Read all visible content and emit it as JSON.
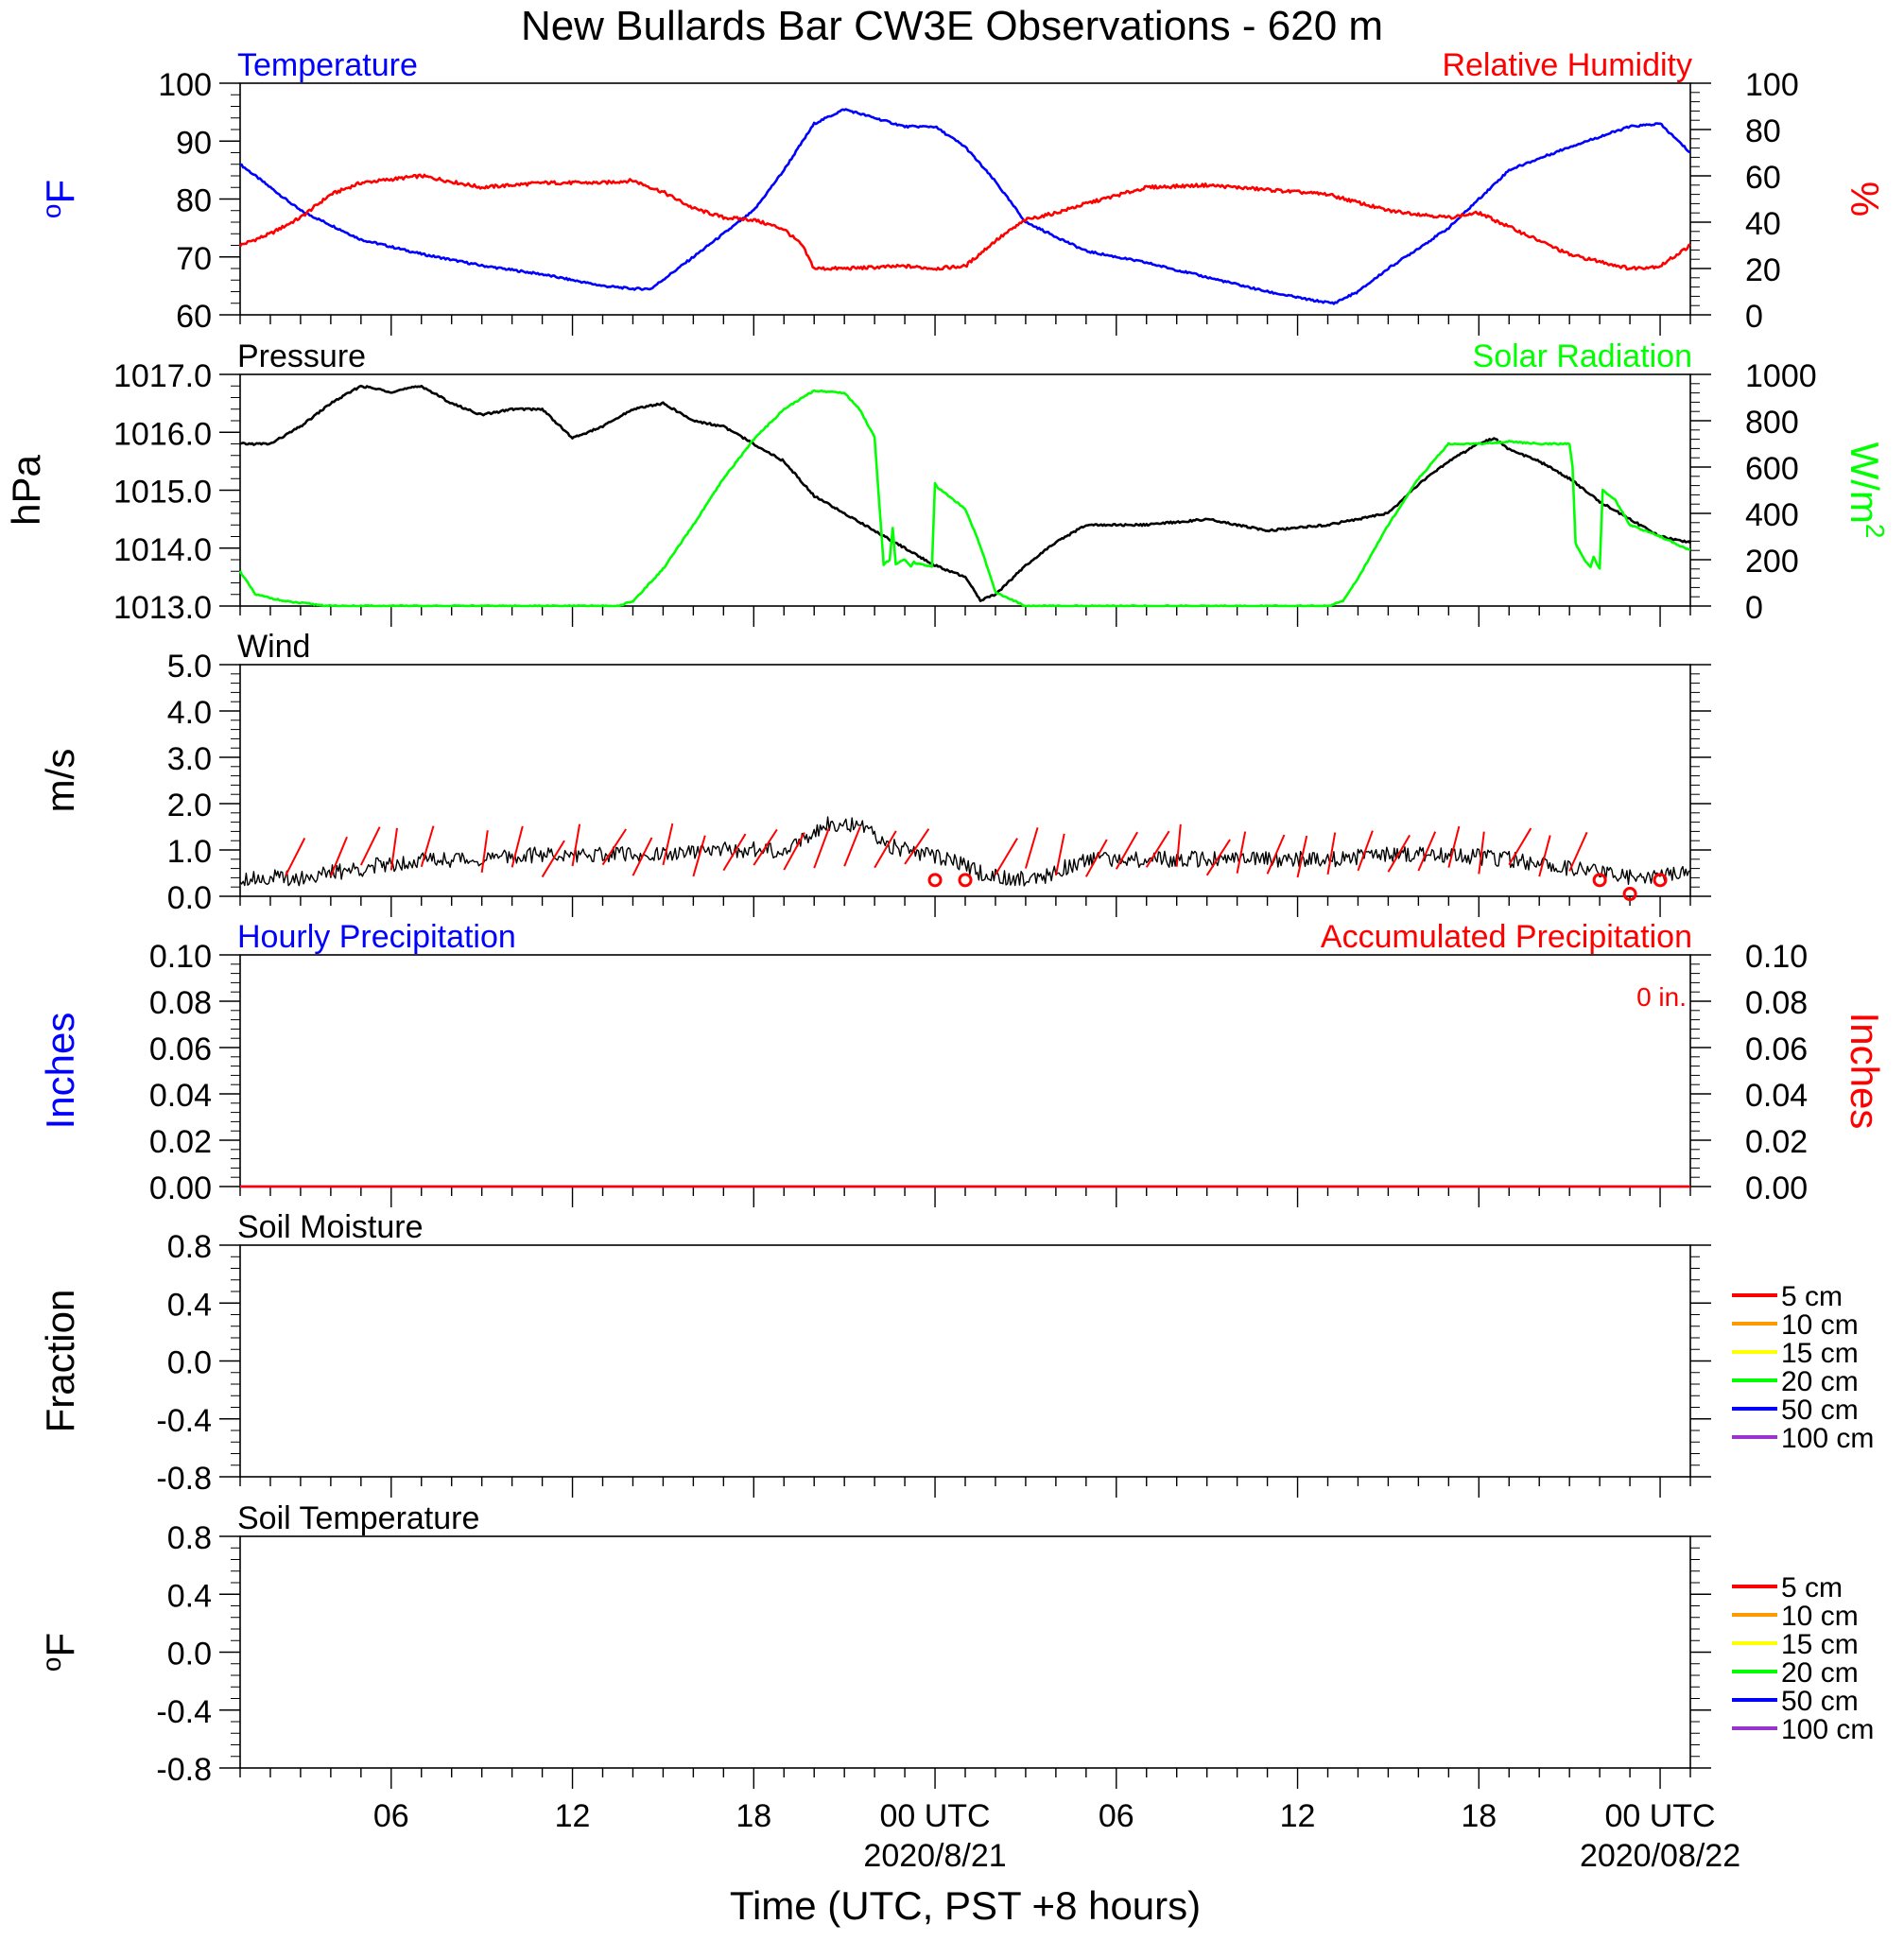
{
  "figure": {
    "title": "New Bullards Bar CW3E Observations - 620 m",
    "xlabel": "Time (UTC, PST +8 hours)",
    "x_tick_labels": [
      "06",
      "12",
      "18",
      "00 UTC",
      "06",
      "12",
      "18",
      "00 UTC"
    ],
    "date_labels": [
      "2020/8/21",
      "2020/08/22"
    ]
  },
  "colors": {
    "temperature": "#0000ff",
    "humidity": "#ff0000",
    "pressure": "#000000",
    "solar": "#00ff00",
    "wind": "#000000",
    "wind_barb": "#ff0000",
    "hourly_precip": "#0000ff",
    "accum_precip": "#ff0000"
  },
  "chart_data": [
    {
      "type": "line",
      "panel": "temperature-humidity",
      "x_unit": "hours since 2020-08-20 01:00 UTC",
      "xlim": [
        0,
        48
      ],
      "left_title": "Temperature",
      "right_title": "Relative Humidity",
      "ylabel_left": "oF",
      "ylabel_right": "%",
      "ylim_left": [
        60,
        100
      ],
      "ylim_right": [
        0,
        100
      ],
      "yticks_left": [
        "60",
        "70",
        "80",
        "90",
        "100"
      ],
      "yticks_right": [
        "0",
        "20",
        "40",
        "60",
        "80",
        "100"
      ],
      "series": [
        {
          "name": "Temperature",
          "axis": "left",
          "color": "#0000ff",
          "x": [
            0,
            2,
            4,
            6,
            8,
            10,
            12,
            13,
            13.6,
            15,
            17,
            18,
            19,
            20,
            21,
            22,
            23,
            24,
            25,
            26,
            28,
            30,
            32,
            34,
            35.5,
            36.2,
            37,
            38,
            40,
            42,
            44,
            46,
            47,
            48
          ],
          "y": [
            86,
            78,
            73,
            70.5,
            68.5,
            67,
            65,
            64.5,
            64.5,
            70,
            78,
            85,
            93,
            95.5,
            94,
            92.5,
            92.5,
            89,
            83,
            76,
            71,
            69,
            66.5,
            64,
            62.5,
            62,
            64,
            68,
            75,
            85,
            89,
            92.5,
            93,
            88
          ]
        },
        {
          "name": "Relative Humidity",
          "axis": "right",
          "color": "#ff0000",
          "x": [
            0,
            1,
            2,
            3,
            4,
            6,
            8,
            10,
            12,
            13,
            14,
            15,
            16,
            17,
            18,
            18.6,
            19,
            20,
            22,
            23,
            24,
            25,
            26,
            27,
            28,
            30,
            32,
            34,
            36,
            38,
            40,
            41,
            42,
            43,
            44,
            46,
            47,
            48
          ],
          "y": [
            30,
            35,
            42,
            52,
            57,
            60,
            55,
            57,
            57,
            58,
            53,
            46,
            42,
            41,
            37,
            30,
            20,
            20,
            21,
            20,
            21,
            32,
            41,
            44,
            48,
            55,
            56,
            54,
            52,
            45,
            42,
            44,
            38,
            32,
            26,
            20,
            21,
            30
          ]
        }
      ]
    },
    {
      "type": "line",
      "panel": "pressure-solar",
      "xlim": [
        0,
        48
      ],
      "left_title": "Pressure",
      "right_title": "Solar Radiation",
      "ylabel_left": "hPa",
      "ylabel_right": "W/m2",
      "ylim_left": [
        1013.0,
        1017.0
      ],
      "ylim_right": [
        0,
        1000
      ],
      "yticks_left": [
        "1013.0",
        "1014.0",
        "1015.0",
        "1016.0",
        "1017.0"
      ],
      "yticks_right": [
        "0",
        "200",
        "400",
        "600",
        "800",
        "1000"
      ],
      "series": [
        {
          "name": "Pressure",
          "axis": "left",
          "color": "#000000",
          "x": [
            0,
            1,
            2,
            3,
            4,
            5,
            6,
            7,
            8,
            9,
            10,
            11,
            11.5,
            12,
            13,
            14,
            15,
            16,
            17,
            18,
            19,
            20,
            21,
            22,
            23,
            24,
            24.5,
            25,
            26,
            27,
            28,
            30,
            32,
            34,
            36,
            38,
            39,
            40,
            41,
            41.5,
            42,
            43,
            44,
            45,
            46,
            47,
            48
          ],
          "y": [
            1015.8,
            1015.8,
            1016.1,
            1016.5,
            1016.8,
            1016.7,
            1016.8,
            1016.5,
            1016.3,
            1016.4,
            1016.4,
            1015.9,
            1016.0,
            1016.1,
            1016.4,
            1016.5,
            1016.2,
            1016.1,
            1015.8,
            1015.5,
            1014.9,
            1014.6,
            1014.3,
            1014.0,
            1013.7,
            1013.5,
            1013.1,
            1013.2,
            1013.7,
            1014.1,
            1014.4,
            1014.4,
            1014.5,
            1014.3,
            1014.4,
            1014.6,
            1015.1,
            1015.5,
            1015.8,
            1015.9,
            1015.7,
            1015.5,
            1015.2,
            1014.8,
            1014.5,
            1014.2,
            1014.1
          ]
        },
        {
          "name": "Solar Radiation",
          "axis": "right",
          "color": "#00ff00",
          "x": [
            0,
            0.5,
            1.5,
            3,
            12.5,
            13,
            14,
            15,
            16,
            17,
            18,
            19,
            20,
            20.5,
            21,
            21.3,
            21.5,
            21.6,
            21.7,
            22,
            22.2,
            22.3,
            22.4,
            22.6,
            22.9,
            23.0,
            23.1,
            24,
            24.5,
            25,
            25.5,
            26,
            36,
            36.5,
            37,
            38,
            39,
            40,
            41,
            42,
            43,
            44,
            44.1,
            44.2,
            44.5,
            44.7,
            44.8,
            45,
            45.1,
            45.5,
            46,
            47,
            48
          ],
          "y": [
            150,
            50,
            20,
            0,
            0,
            20,
            160,
            350,
            550,
            720,
            850,
            930,
            920,
            850,
            730,
            180,
            200,
            340,
            180,
            200,
            170,
            190,
            180,
            180,
            170,
            530,
            510,
            420,
            260,
            60,
            30,
            0,
            0,
            20,
            120,
            350,
            550,
            700,
            700,
            710,
            700,
            700,
            600,
            270,
            200,
            170,
            210,
            160,
            500,
            460,
            350,
            300,
            240
          ]
        }
      ]
    },
    {
      "type": "line",
      "panel": "wind",
      "xlim": [
        0,
        48
      ],
      "left_title": "Wind",
      "ylabel_left": "m/s",
      "ylim_left": [
        0,
        5
      ],
      "yticks_left": [
        "0.0",
        "1.0",
        "2.0",
        "3.0",
        "4.0",
        "5.0"
      ],
      "series": [
        {
          "name": "Wind",
          "axis": "left",
          "color": "#000000",
          "x": [
            0,
            2,
            4,
            6,
            8,
            10,
            12,
            14,
            16,
            18,
            18.8,
            19.5,
            20.5,
            21.5,
            22.5,
            23.5,
            24.5,
            25.5,
            26.5,
            28,
            30,
            32,
            34,
            36,
            38,
            40,
            42,
            44,
            45,
            46,
            47,
            48
          ],
          "y": [
            0.4,
            0.4,
            0.6,
            0.8,
            0.8,
            0.9,
            0.9,
            0.9,
            1.0,
            1.0,
            1.3,
            1.6,
            1.5,
            1.1,
            0.9,
            0.8,
            0.5,
            0.4,
            0.4,
            0.8,
            0.8,
            0.8,
            0.8,
            0.8,
            0.9,
            0.9,
            0.8,
            0.6,
            0.5,
            0.4,
            0.4,
            0.6
          ]
        }
      ],
      "barbs_hours": [
        1.5,
        3,
        4,
        5,
        6,
        8,
        9,
        10,
        11,
        12,
        13,
        14,
        15,
        16,
        17,
        18,
        19,
        20,
        21,
        22,
        25,
        26,
        27,
        28,
        29,
        30,
        31,
        32,
        33,
        34,
        35,
        36,
        37,
        38,
        39,
        40,
        41,
        42,
        43,
        44
      ],
      "calm_hours": [
        23,
        24,
        45,
        46,
        47
      ]
    },
    {
      "type": "line",
      "panel": "precipitation",
      "xlim": [
        0,
        48
      ],
      "left_title": "Hourly Precipitation",
      "right_title": "Accumulated Precipitation",
      "accum_label": "0 in.",
      "ylabel_left": "Inches",
      "ylabel_right": "Inches",
      "ylim_left": [
        0,
        0.1
      ],
      "ylim_right": [
        0,
        0.1
      ],
      "yticks_left": [
        "0.00",
        "0.02",
        "0.04",
        "0.06",
        "0.08",
        "0.10"
      ],
      "yticks_right": [
        "0.00",
        "0.02",
        "0.04",
        "0.06",
        "0.08",
        "0.10"
      ],
      "series": [
        {
          "name": "Hourly Precipitation",
          "axis": "left",
          "color": "#0000ff",
          "x": [
            0,
            48
          ],
          "y": [
            0,
            0
          ]
        },
        {
          "name": "Accumulated Precipitation",
          "axis": "right",
          "color": "#ff0000",
          "x": [
            0,
            48
          ],
          "y": [
            0,
            0
          ]
        }
      ]
    },
    {
      "type": "line",
      "panel": "soil-moisture",
      "xlim": [
        0,
        48
      ],
      "left_title": "Soil Moisture",
      "ylabel_left": "Fraction",
      "ylim_left": [
        -1,
        1
      ],
      "yticks_left": [
        "-0.8",
        "-0.4",
        "0.0",
        "0.4",
        "0.8"
      ],
      "legend": [
        "5 cm",
        "10 cm",
        "15 cm",
        "20 cm",
        "50 cm",
        "100 cm"
      ],
      "series": []
    },
    {
      "type": "line",
      "panel": "soil-temperature",
      "xlim": [
        0,
        48
      ],
      "left_title": "Soil Temperature",
      "ylabel_left": "oF",
      "ylim_left": [
        -1,
        1
      ],
      "yticks_left": [
        "-0.8",
        "-0.4",
        "0.0",
        "0.4",
        "0.8"
      ],
      "legend": [
        "5 cm",
        "10 cm",
        "15 cm",
        "20 cm",
        "50 cm",
        "100 cm"
      ],
      "series": []
    }
  ]
}
